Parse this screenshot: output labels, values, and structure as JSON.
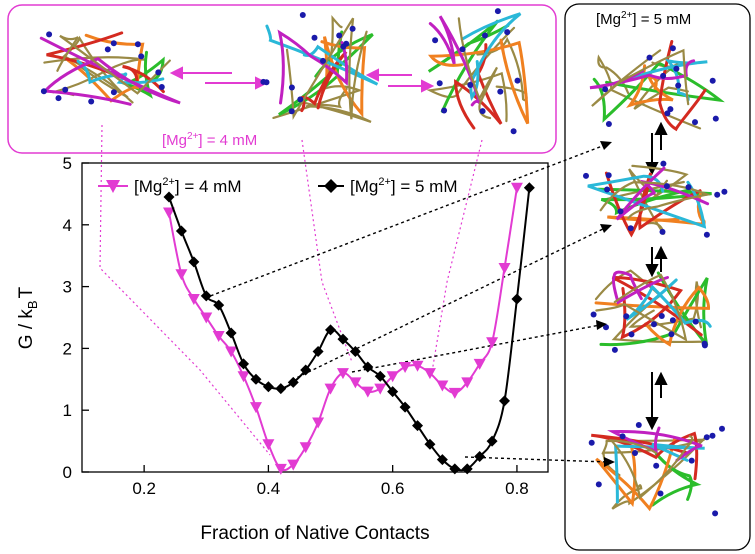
{
  "chart_data": {
    "type": "line",
    "xlabel": "Fraction of Native Contacts",
    "ylabel_main": "G / k",
    "ylabel_sub": "B",
    "ylabel_tail": "T",
    "xlim": [
      0.1,
      0.85
    ],
    "ylim": [
      0,
      5
    ],
    "xticks": [
      0.2,
      0.4,
      0.6,
      0.8
    ],
    "yticks": [
      0,
      1,
      2,
      3,
      4,
      5
    ],
    "legend_position": "top",
    "series": [
      {
        "name_pre": "[Mg",
        "name_sup": "2+",
        "name_post": "] = 4 mM",
        "color": "#e23bd2",
        "marker": "triangle-down",
        "x": [
          0.24,
          0.26,
          0.28,
          0.3,
          0.32,
          0.34,
          0.36,
          0.38,
          0.4,
          0.42,
          0.44,
          0.46,
          0.48,
          0.5,
          0.52,
          0.54,
          0.56,
          0.58,
          0.6,
          0.62,
          0.64,
          0.66,
          0.68,
          0.7,
          0.72,
          0.74,
          0.76,
          0.78,
          0.8
        ],
        "y": [
          4.2,
          3.2,
          2.8,
          2.5,
          2.2,
          1.95,
          1.55,
          1.05,
          0.45,
          0.05,
          0.12,
          0.4,
          0.8,
          1.35,
          1.6,
          1.45,
          1.3,
          1.35,
          1.55,
          1.7,
          1.72,
          1.6,
          1.4,
          1.28,
          1.45,
          1.75,
          2.1,
          3.3,
          4.6
        ]
      },
      {
        "name_pre": "[Mg",
        "name_sup": "2+",
        "name_post": "] = 5 mM",
        "color": "#000000",
        "marker": "diamond",
        "x": [
          0.24,
          0.26,
          0.28,
          0.3,
          0.32,
          0.34,
          0.36,
          0.38,
          0.4,
          0.42,
          0.44,
          0.46,
          0.48,
          0.5,
          0.52,
          0.54,
          0.56,
          0.58,
          0.6,
          0.62,
          0.64,
          0.66,
          0.68,
          0.7,
          0.72,
          0.74,
          0.76,
          0.78,
          0.8,
          0.82
        ],
        "y": [
          4.45,
          3.9,
          3.4,
          2.85,
          2.7,
          2.25,
          1.75,
          1.5,
          1.38,
          1.35,
          1.45,
          1.65,
          1.95,
          2.3,
          2.15,
          1.95,
          1.7,
          1.55,
          1.3,
          1.05,
          0.75,
          0.45,
          0.2,
          0.05,
          0.05,
          0.25,
          0.5,
          1.15,
          2.8,
          4.6
        ]
      }
    ]
  },
  "insets": {
    "top_label_pre": "[Mg",
    "top_label_sup": "2+",
    "top_label_post": "] = 4 mM",
    "right_label_pre": "[Mg",
    "right_label_sup": "2+",
    "right_label_post": "] = 5 mM"
  },
  "colors": {
    "magenta": "#e23bd2",
    "black": "#000000",
    "rna_green": "#2bbd2b",
    "rna_olive": "#9a8a45",
    "rna_orange": "#f08020",
    "rna_red": "#d42a20",
    "rna_cyan": "#2ab8d8",
    "rna_purple": "#c020c0",
    "ion_blue": "#1a1aaa"
  }
}
